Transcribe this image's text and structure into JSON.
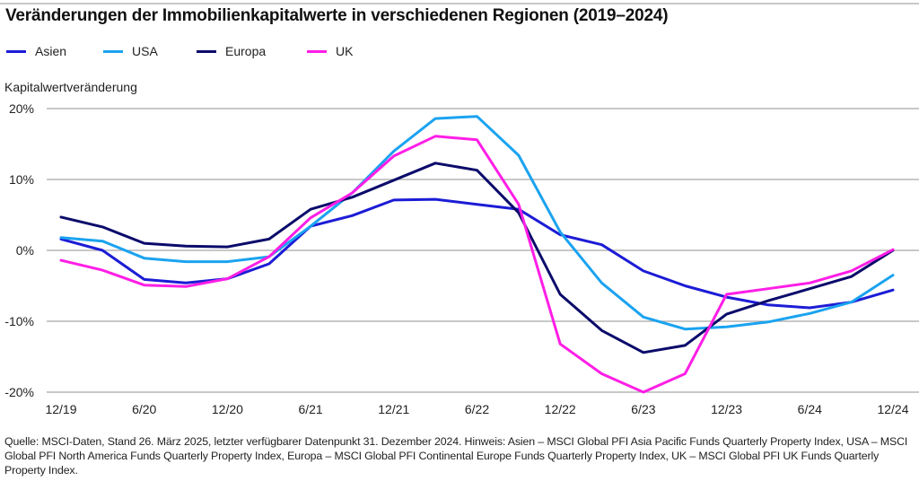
{
  "chart_data": {
    "type": "line",
    "title": "Veränderungen der Immobilienkapitalwerte in verschiedenen Regionen (2019–2024)",
    "xlabel": "",
    "ylabel": "Kapitalwertveränderung",
    "ylim": [
      -20,
      20
    ],
    "yticks": [
      20,
      10,
      0,
      -10,
      -20
    ],
    "ytick_labels": [
      "20%",
      "10%",
      "0%",
      "-10%",
      "-20%"
    ],
    "grid": true,
    "legend_position": "top-left",
    "x": [
      "12/19",
      "3/20",
      "6/20",
      "9/20",
      "12/20",
      "3/21",
      "6/21",
      "9/21",
      "12/21",
      "3/22",
      "6/22",
      "9/22",
      "12/22",
      "3/23",
      "6/23",
      "9/23",
      "12/23",
      "3/24",
      "6/24",
      "9/24",
      "12/24"
    ],
    "xtick_labels": [
      "12/19",
      "6/20",
      "12/20",
      "6/21",
      "12/21",
      "6/22",
      "12/22",
      "6/23",
      "12/23",
      "6/24",
      "12/24"
    ],
    "series": [
      {
        "name": "Asien",
        "color": "#1c1cd6",
        "values": [
          1.6,
          0.0,
          -4.1,
          -4.6,
          -4.0,
          -1.9,
          3.4,
          4.9,
          7.1,
          7.2,
          6.5,
          5.8,
          2.2,
          0.8,
          -2.9,
          -5.0,
          -6.6,
          -7.7,
          -8.1,
          -7.3,
          -5.6
        ]
      },
      {
        "name": "USA",
        "color": "#1ba3f0",
        "values": [
          1.8,
          1.3,
          -1.1,
          -1.6,
          -1.6,
          -0.9,
          3.4,
          8.1,
          14.0,
          18.6,
          18.9,
          13.4,
          2.6,
          -4.6,
          -9.4,
          -11.1,
          -10.8,
          -10.1,
          -8.9,
          -7.3,
          -3.5
        ]
      },
      {
        "name": "Europa",
        "color": "#0b0b6b",
        "values": [
          4.7,
          3.3,
          1.0,
          0.6,
          0.5,
          1.6,
          5.8,
          7.5,
          9.9,
          12.3,
          11.3,
          5.3,
          -6.2,
          -11.3,
          -14.4,
          -13.4,
          -9.0,
          -7.1,
          -5.4,
          -3.7,
          0.0
        ]
      },
      {
        "name": "UK",
        "color": "#ff1ee6",
        "values": [
          -1.4,
          -2.8,
          -4.9,
          -5.1,
          -4.0,
          -0.9,
          4.6,
          8.1,
          13.3,
          16.1,
          15.6,
          6.5,
          -13.2,
          -17.4,
          -20.0,
          -17.4,
          -6.2,
          -5.4,
          -4.6,
          -2.9,
          0.1
        ]
      }
    ]
  },
  "footer": {
    "source_note": "Quelle: MSCI-Daten, Stand 26. März 2025, letzter verfügbarer Datenpunkt 31. Dezember 2024. Hinweis: Asien – MSCI Global PFI Asia Pacific Funds Quarterly Property Index, USA – MSCI Global PFI North America Funds Quarterly Property Index, Europa – MSCI Global PFI Continental Europe Funds Quarterly Property Index, UK – MSCI Global PFI UK Funds Quarterly Property Index."
  }
}
